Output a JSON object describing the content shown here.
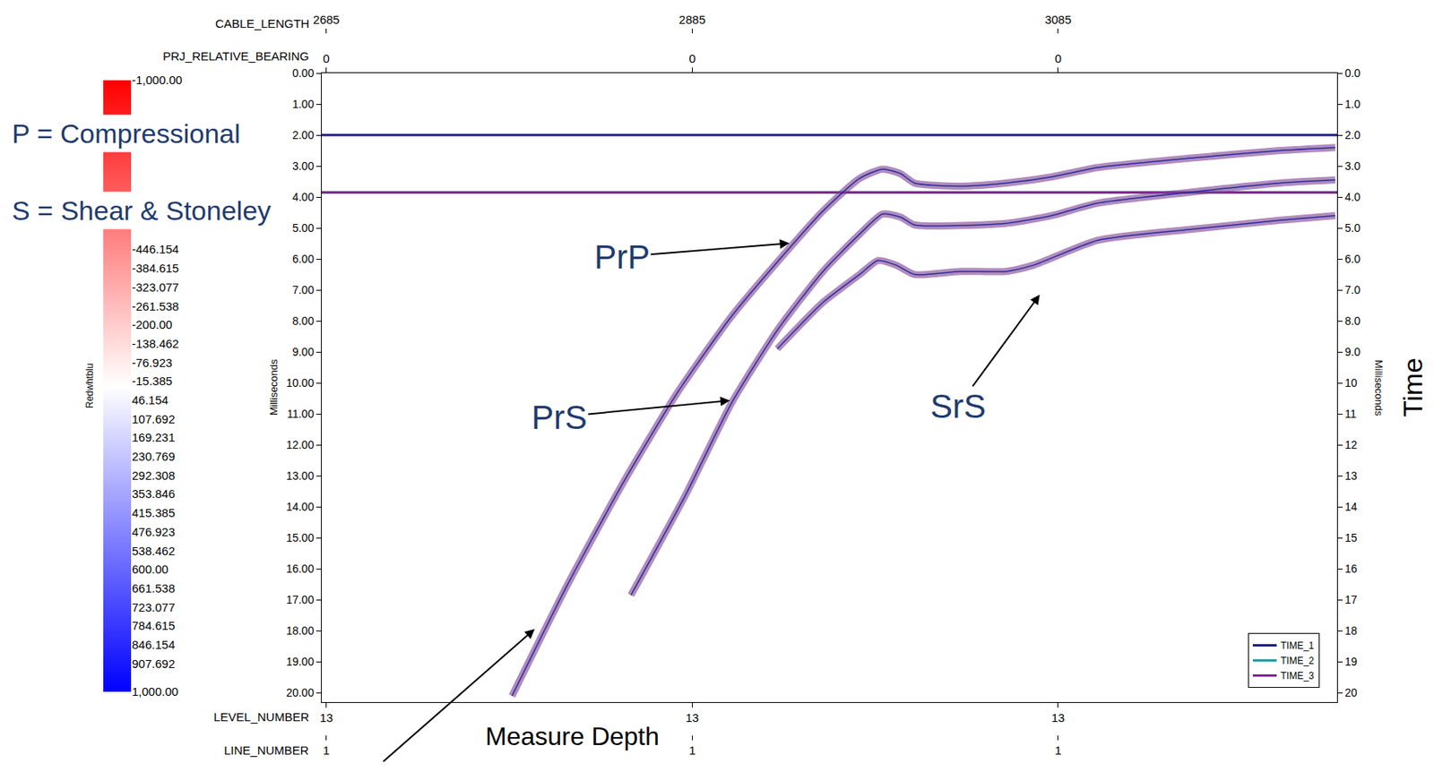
{
  "chart_data": {
    "type": "line",
    "x_label": "Measure Depth",
    "y_label": "Milliseconds",
    "y2_label": "Milliseconds",
    "side_label": "Time",
    "key": [
      "P = Compressional",
      "S = Shear & Stoneley"
    ],
    "xlim": [
      2682.5,
      3237.5
    ],
    "x_axes": [
      {
        "name": "CABLE_LENGTH",
        "side": "top",
        "ticks": [
          2685,
          2885,
          3085
        ]
      },
      {
        "name": "PRJ_RELATIVE_BEARING",
        "side": "top",
        "ticks": [
          {
            "value": 2685,
            "label": "0"
          },
          {
            "value": 2885,
            "label": "0"
          },
          {
            "value": 3085,
            "label": "0"
          }
        ]
      },
      {
        "name": "LEVEL_NUMBER",
        "side": "bottom",
        "ticks": [
          {
            "value": 2685,
            "label": "13"
          },
          {
            "value": 2885,
            "label": "13"
          },
          {
            "value": 3085,
            "label": "13"
          }
        ]
      },
      {
        "name": "LINE_NUMBER",
        "side": "bottom",
        "ticks": [
          {
            "value": 2685,
            "label": "1"
          },
          {
            "value": 2885,
            "label": "1"
          },
          {
            "value": 3085,
            "label": "1"
          }
        ]
      }
    ],
    "ylim": [
      20.3,
      0
    ],
    "yticks": [
      {
        "value": 0,
        "label": "0.00"
      },
      {
        "value": 1,
        "label": "1.00"
      },
      {
        "value": 2,
        "label": "2.00"
      },
      {
        "value": 3,
        "label": "3.00"
      },
      {
        "value": 4,
        "label": "4.00"
      },
      {
        "value": 5,
        "label": "5.00"
      },
      {
        "value": 6,
        "label": "6.00"
      },
      {
        "value": 7,
        "label": "7.00"
      },
      {
        "value": 8,
        "label": "8.00"
      },
      {
        "value": 9,
        "label": "9.00"
      },
      {
        "value": 10,
        "label": "10.00"
      },
      {
        "value": 11,
        "label": "11.00"
      },
      {
        "value": 12,
        "label": "12.00"
      },
      {
        "value": 13,
        "label": "13.00"
      },
      {
        "value": 14,
        "label": "14.00"
      },
      {
        "value": 15,
        "label": "15.00"
      },
      {
        "value": 16,
        "label": "16.00"
      },
      {
        "value": 17,
        "label": "17.00"
      },
      {
        "value": 18,
        "label": "18.00"
      },
      {
        "value": 19,
        "label": "19.00"
      },
      {
        "value": 20,
        "label": "20.00"
      }
    ],
    "y2lim": [
      20.3,
      0
    ],
    "y2ticks": [
      {
        "value": 0,
        "label": "0.0"
      },
      {
        "value": 1,
        "label": "1.0"
      },
      {
        "value": 2,
        "label": "2.0"
      },
      {
        "value": 3,
        "label": "3.0"
      },
      {
        "value": 4,
        "label": "4.0"
      },
      {
        "value": 5,
        "label": "5.0"
      },
      {
        "value": 6,
        "label": "6.0"
      },
      {
        "value": 7,
        "label": "7.0"
      },
      {
        "value": 8,
        "label": "8.0"
      },
      {
        "value": 9,
        "label": "9.0"
      },
      10,
      11,
      12,
      13,
      14,
      15,
      16,
      17,
      18,
      19,
      20
    ],
    "grid": false,
    "legend": "lower right",
    "series": [
      {
        "name": "TIME_1",
        "color": "#1c1c8a",
        "x": [
          2682.5,
          3237.5
        ],
        "values": [
          2.0,
          2.0
        ]
      },
      {
        "name": "TIME_2",
        "color": "#2a9d9d",
        "x": [
          2682.5,
          3237.5
        ],
        "values": [
          3.85,
          3.85
        ]
      },
      {
        "name": "TIME_3",
        "color": "#7b2a8c",
        "x": [
          2682.5,
          3237.5
        ],
        "values": [
          3.85,
          3.85
        ]
      }
    ],
    "arrivals": [
      {
        "name": "PrP",
        "color": "#7b3f91",
        "x": [
          2786.5,
          2816.5,
          2846.5,
          2876.5,
          2906.5,
          2931.5,
          2956.5,
          2976.5,
          2989,
          2999,
          3006.5,
          3031.5,
          3056.5,
          3081.5,
          3106.5,
          3156.5,
          3206.5,
          3236.5
        ],
        "values": [
          20.1,
          16.55,
          13.3,
          10.35,
          7.85,
          6.1,
          4.45,
          3.4,
          3.1,
          3.25,
          3.55,
          3.65,
          3.55,
          3.35,
          3.05,
          2.75,
          2.5,
          2.4
        ],
        "pointer": {
          "x": 2939,
          "y": 5.49
        }
      },
      {
        "name": "PrS",
        "color": "#7b3f91",
        "x": [
          2851.5,
          2881.5,
          2906.5,
          2931.5,
          2956.5,
          2976.5,
          2989,
          2999,
          3006.5,
          3056.5,
          3081.5,
          3106.5,
          3156.5,
          3206.5,
          3236.5
        ],
        "values": [
          16.85,
          13.6,
          10.65,
          8.3,
          6.4,
          5.2,
          4.55,
          4.65,
          4.9,
          4.85,
          4.6,
          4.2,
          3.85,
          3.55,
          3.45
        ],
        "pointer": {
          "x": 2906.5,
          "y": 10.56
        }
      },
      {
        "name": "SrS",
        "color": "#7b3f91",
        "x": [
          2931.5,
          2956.5,
          2976.5,
          2986.5,
          2996.5,
          3006.5,
          3031.5,
          3056.5,
          3071.5,
          3106.5,
          3156.5,
          3206.5,
          3236.5
        ],
        "values": [
          8.9,
          7.4,
          6.5,
          6.05,
          6.2,
          6.5,
          6.4,
          6.4,
          6.2,
          5.4,
          5.05,
          4.75,
          4.6
        ],
        "pointer": {
          "x": 3075.5,
          "y": 7.11
        }
      }
    ],
    "colorbar": {
      "title": "Redwhtblu",
      "range": [
        -1000,
        1000
      ],
      "ticks": [
        {
          "value": -1000,
          "label": "-1,000.00"
        },
        -446.154,
        -384.615,
        -323.077,
        -261.538,
        {
          "value": -200,
          "label": "-200.00"
        },
        -138.462,
        -76.923,
        -15.385,
        46.154,
        107.692,
        169.231,
        230.769,
        292.308,
        353.846,
        415.385,
        476.923,
        538.462,
        {
          "value": 600,
          "label": "600.00"
        },
        661.538,
        723.077,
        784.615,
        846.154,
        907.692,
        {
          "value": 1000,
          "label": "1,000.00"
        }
      ]
    }
  }
}
